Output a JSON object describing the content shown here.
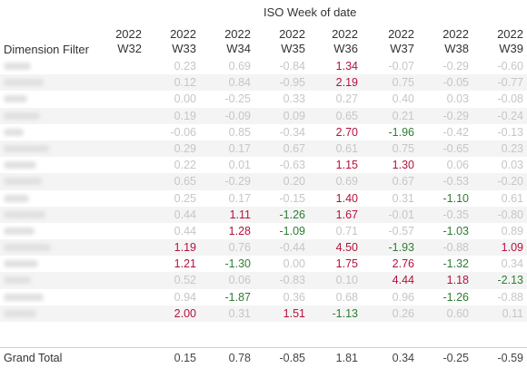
{
  "header": {
    "title": "ISO Week of date",
    "dimension_label": "Dimension Filter"
  },
  "weeks": [
    {
      "year": "2022",
      "week": "W32"
    },
    {
      "year": "2022",
      "week": "W33"
    },
    {
      "year": "2022",
      "week": "W34"
    },
    {
      "year": "2022",
      "week": "W35"
    },
    {
      "year": "2022",
      "week": "W36"
    },
    {
      "year": "2022",
      "week": "W37"
    },
    {
      "year": "2022",
      "week": "W38"
    },
    {
      "year": "2022",
      "week": "W39"
    }
  ],
  "rows": [
    {
      "cells": [
        {
          "v": "",
          "c": "gray"
        },
        {
          "v": "0.23",
          "c": "gray"
        },
        {
          "v": "0.69",
          "c": "gray"
        },
        {
          "v": "-0.84",
          "c": "gray"
        },
        {
          "v": "1.34",
          "c": "red"
        },
        {
          "v": "-0.07",
          "c": "gray"
        },
        {
          "v": "-0.29",
          "c": "gray"
        },
        {
          "v": "-0.60",
          "c": "gray"
        }
      ]
    },
    {
      "cells": [
        {
          "v": "",
          "c": "gray"
        },
        {
          "v": "0.12",
          "c": "gray"
        },
        {
          "v": "0.84",
          "c": "gray"
        },
        {
          "v": "-0.95",
          "c": "gray"
        },
        {
          "v": "2.19",
          "c": "red"
        },
        {
          "v": "0.75",
          "c": "gray"
        },
        {
          "v": "-0.05",
          "c": "gray"
        },
        {
          "v": "-0.77",
          "c": "gray"
        }
      ]
    },
    {
      "cells": [
        {
          "v": "",
          "c": "gray"
        },
        {
          "v": "0.00",
          "c": "gray"
        },
        {
          "v": "-0.25",
          "c": "gray"
        },
        {
          "v": "0.33",
          "c": "gray"
        },
        {
          "v": "0.27",
          "c": "gray"
        },
        {
          "v": "0.40",
          "c": "gray"
        },
        {
          "v": "0.03",
          "c": "gray"
        },
        {
          "v": "-0.08",
          "c": "gray"
        }
      ]
    },
    {
      "cells": [
        {
          "v": "",
          "c": "gray"
        },
        {
          "v": "0.19",
          "c": "gray"
        },
        {
          "v": "-0.09",
          "c": "gray"
        },
        {
          "v": "0.09",
          "c": "gray"
        },
        {
          "v": "0.65",
          "c": "gray"
        },
        {
          "v": "0.21",
          "c": "gray"
        },
        {
          "v": "-0.29",
          "c": "gray"
        },
        {
          "v": "-0.24",
          "c": "gray"
        }
      ]
    },
    {
      "cells": [
        {
          "v": "",
          "c": "gray"
        },
        {
          "v": "-0.06",
          "c": "gray"
        },
        {
          "v": "0.85",
          "c": "gray"
        },
        {
          "v": "-0.34",
          "c": "gray"
        },
        {
          "v": "2.70",
          "c": "red"
        },
        {
          "v": "-1.96",
          "c": "green"
        },
        {
          "v": "-0.42",
          "c": "gray"
        },
        {
          "v": "-0.13",
          "c": "gray"
        }
      ]
    },
    {
      "cells": [
        {
          "v": "",
          "c": "gray"
        },
        {
          "v": "0.29",
          "c": "gray"
        },
        {
          "v": "0.17",
          "c": "gray"
        },
        {
          "v": "0.67",
          "c": "gray"
        },
        {
          "v": "0.61",
          "c": "gray"
        },
        {
          "v": "0.75",
          "c": "gray"
        },
        {
          "v": "-0.65",
          "c": "gray"
        },
        {
          "v": "0.23",
          "c": "gray"
        }
      ]
    },
    {
      "cells": [
        {
          "v": "",
          "c": "gray"
        },
        {
          "v": "0.22",
          "c": "gray"
        },
        {
          "v": "0.01",
          "c": "gray"
        },
        {
          "v": "-0.63",
          "c": "gray"
        },
        {
          "v": "1.15",
          "c": "red"
        },
        {
          "v": "1.30",
          "c": "red"
        },
        {
          "v": "0.06",
          "c": "gray"
        },
        {
          "v": "0.03",
          "c": "gray"
        }
      ]
    },
    {
      "cells": [
        {
          "v": "",
          "c": "gray"
        },
        {
          "v": "0.65",
          "c": "gray"
        },
        {
          "v": "-0.29",
          "c": "gray"
        },
        {
          "v": "0.20",
          "c": "gray"
        },
        {
          "v": "0.69",
          "c": "gray"
        },
        {
          "v": "0.67",
          "c": "gray"
        },
        {
          "v": "-0.53",
          "c": "gray"
        },
        {
          "v": "-0.20",
          "c": "gray"
        }
      ]
    },
    {
      "cells": [
        {
          "v": "",
          "c": "gray"
        },
        {
          "v": "0.25",
          "c": "gray"
        },
        {
          "v": "0.17",
          "c": "gray"
        },
        {
          "v": "-0.15",
          "c": "gray"
        },
        {
          "v": "1.40",
          "c": "red"
        },
        {
          "v": "0.31",
          "c": "gray"
        },
        {
          "v": "-1.10",
          "c": "green"
        },
        {
          "v": "0.61",
          "c": "gray"
        }
      ]
    },
    {
      "cells": [
        {
          "v": "",
          "c": "gray"
        },
        {
          "v": "0.44",
          "c": "gray"
        },
        {
          "v": "1.11",
          "c": "red"
        },
        {
          "v": "-1.26",
          "c": "green"
        },
        {
          "v": "1.67",
          "c": "red"
        },
        {
          "v": "-0.01",
          "c": "gray"
        },
        {
          "v": "-0.35",
          "c": "gray"
        },
        {
          "v": "-0.80",
          "c": "gray"
        }
      ]
    },
    {
      "cells": [
        {
          "v": "",
          "c": "gray"
        },
        {
          "v": "0.44",
          "c": "gray"
        },
        {
          "v": "1.28",
          "c": "red"
        },
        {
          "v": "-1.09",
          "c": "green"
        },
        {
          "v": "0.71",
          "c": "gray"
        },
        {
          "v": "-0.57",
          "c": "gray"
        },
        {
          "v": "-1.03",
          "c": "green"
        },
        {
          "v": "0.89",
          "c": "gray"
        }
      ]
    },
    {
      "cells": [
        {
          "v": "",
          "c": "gray"
        },
        {
          "v": "1.19",
          "c": "red"
        },
        {
          "v": "0.76",
          "c": "gray"
        },
        {
          "v": "-0.44",
          "c": "gray"
        },
        {
          "v": "4.50",
          "c": "red"
        },
        {
          "v": "-1.93",
          "c": "green"
        },
        {
          "v": "-0.88",
          "c": "gray"
        },
        {
          "v": "1.09",
          "c": "red"
        }
      ]
    },
    {
      "cells": [
        {
          "v": "",
          "c": "gray"
        },
        {
          "v": "1.21",
          "c": "red"
        },
        {
          "v": "-1.30",
          "c": "green"
        },
        {
          "v": "0.00",
          "c": "gray"
        },
        {
          "v": "1.75",
          "c": "red"
        },
        {
          "v": "2.76",
          "c": "red"
        },
        {
          "v": "-1.32",
          "c": "green"
        },
        {
          "v": "0.34",
          "c": "gray"
        }
      ]
    },
    {
      "cells": [
        {
          "v": "",
          "c": "gray"
        },
        {
          "v": "0.52",
          "c": "gray"
        },
        {
          "v": "0.06",
          "c": "gray"
        },
        {
          "v": "-0.83",
          "c": "gray"
        },
        {
          "v": "0.10",
          "c": "gray"
        },
        {
          "v": "4.44",
          "c": "red"
        },
        {
          "v": "1.18",
          "c": "red"
        },
        {
          "v": "-2.13",
          "c": "green"
        }
      ]
    },
    {
      "cells": [
        {
          "v": "",
          "c": "gray"
        },
        {
          "v": "0.94",
          "c": "gray"
        },
        {
          "v": "-1.87",
          "c": "green"
        },
        {
          "v": "0.36",
          "c": "gray"
        },
        {
          "v": "0.68",
          "c": "gray"
        },
        {
          "v": "0.96",
          "c": "gray"
        },
        {
          "v": "-1.26",
          "c": "green"
        },
        {
          "v": "-0.88",
          "c": "gray"
        }
      ]
    },
    {
      "cells": [
        {
          "v": "",
          "c": "gray"
        },
        {
          "v": "2.00",
          "c": "red"
        },
        {
          "v": "0.31",
          "c": "gray"
        },
        {
          "v": "1.51",
          "c": "red"
        },
        {
          "v": "-1.13",
          "c": "green"
        },
        {
          "v": "0.26",
          "c": "gray"
        },
        {
          "v": "0.60",
          "c": "gray"
        },
        {
          "v": "0.11",
          "c": "gray"
        }
      ]
    }
  ],
  "grand_total": {
    "label": "Grand Total",
    "values": [
      "",
      "0.15",
      "0.78",
      "-0.85",
      "1.81",
      "0.34",
      "-0.25",
      "-0.59"
    ]
  },
  "colors": {
    "gray": "#c6c6c6",
    "red": "#b3123c",
    "green": "#2e7d32",
    "row_band": "#f4f4f4"
  }
}
